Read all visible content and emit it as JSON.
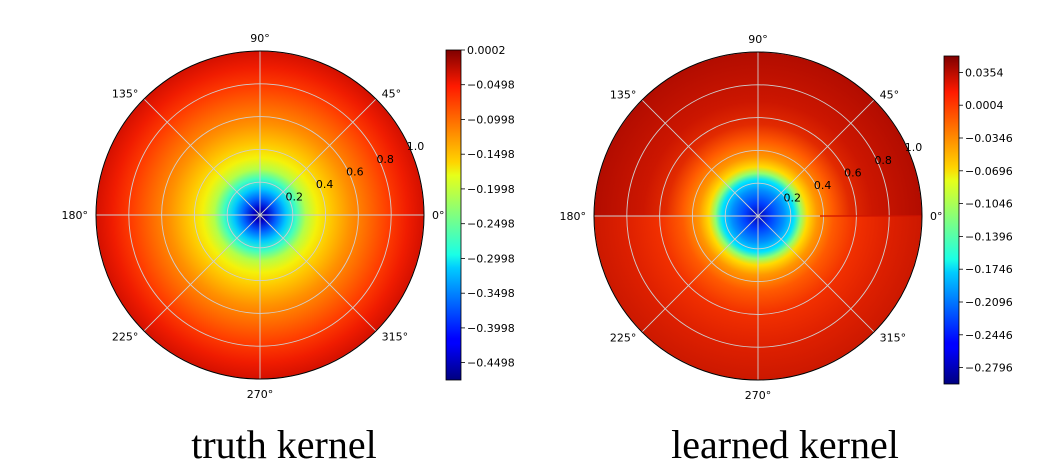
{
  "chart_data": [
    {
      "type": "heatmap",
      "projection": "polar",
      "caption": "truth kernel",
      "theta_ticks": [
        "0°",
        "45°",
        "90°",
        "135°",
        "180°",
        "225°",
        "270°",
        "315°"
      ],
      "r_ticks": [
        "0.2",
        "0.4",
        "0.6",
        "0.8",
        "1.0"
      ],
      "r_range": [
        0,
        1.0
      ],
      "colormap": "jet",
      "grid": true,
      "colorbar": {
        "range": [
          -0.4748,
          0.0002
        ],
        "ticks": [
          "0.0002",
          "−0.0498",
          "−0.0998",
          "−0.1498",
          "−0.1998",
          "−0.2498",
          "−0.2998",
          "−0.3498",
          "−0.3998",
          "−0.4498"
        ],
        "tick_values": [
          0.0002,
          -0.0498,
          -0.0998,
          -0.1498,
          -0.1998,
          -0.2498,
          -0.2998,
          -0.3498,
          -0.3998,
          -0.4498
        ],
        "placement": "right"
      }
    },
    {
      "type": "heatmap",
      "projection": "polar",
      "caption": "learned kernel",
      "theta_ticks": [
        "0°",
        "45°",
        "90°",
        "135°",
        "180°",
        "225°",
        "270°",
        "315°"
      ],
      "r_ticks": [
        "0.2",
        "0.4",
        "0.6",
        "0.8",
        "1.0"
      ],
      "r_range": [
        0,
        1.0
      ],
      "colormap": "jet",
      "grid": true,
      "colorbar": {
        "range": [
          -0.2971,
          0.0529
        ],
        "ticks": [
          "0.0354",
          "0.0004",
          "−0.0346",
          "−0.0696",
          "−0.1046",
          "−0.1396",
          "−0.1746",
          "−0.2096",
          "−0.2446",
          "−0.2796"
        ],
        "tick_values": [
          0.0354,
          0.0004,
          -0.0346,
          -0.0696,
          -0.1046,
          -0.1396,
          -0.1746,
          -0.2096,
          -0.2446,
          -0.2796
        ],
        "placement": "right"
      }
    }
  ]
}
